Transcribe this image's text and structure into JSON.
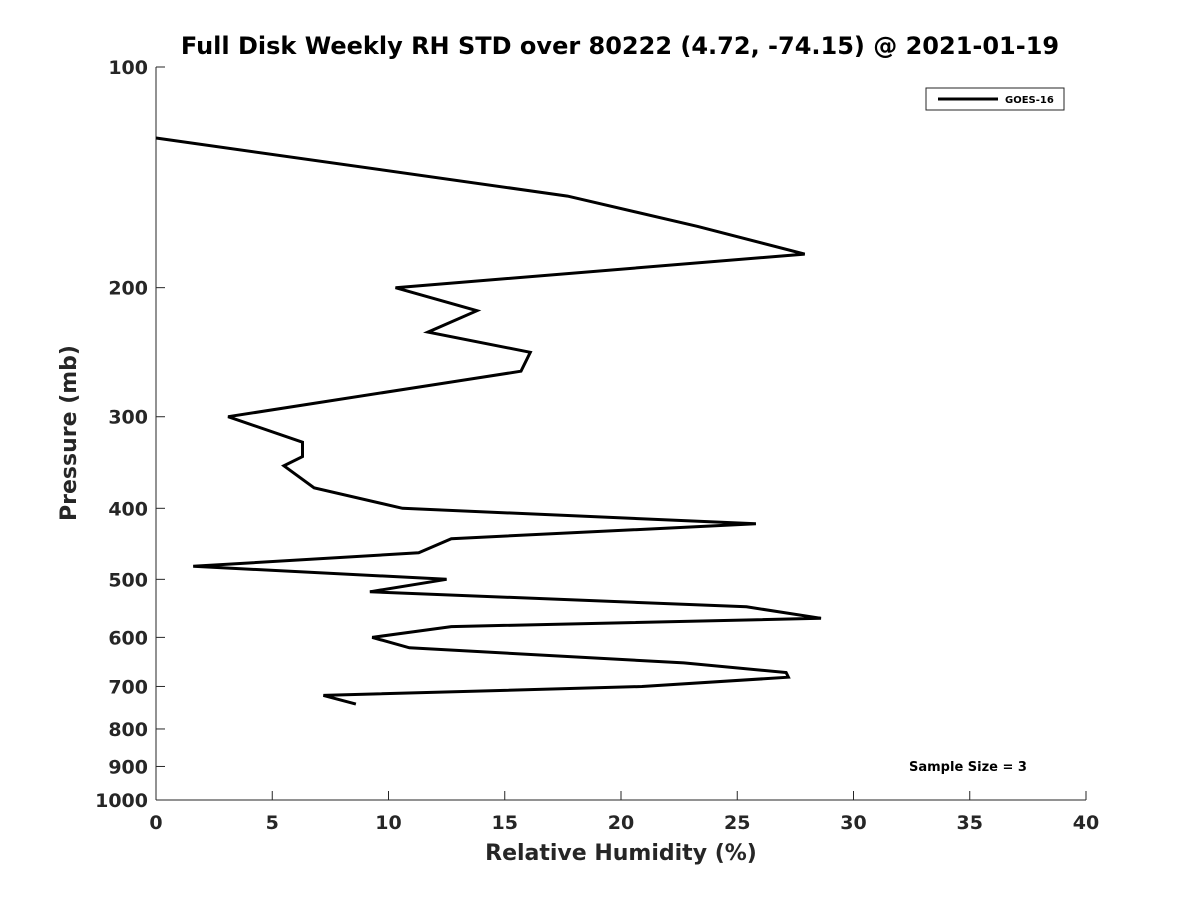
{
  "chart_data": {
    "type": "line",
    "title": "Full Disk Weekly RH STD over 80222 (4.72, -74.15) @ 2021-01-19",
    "xlabel": "Relative Humidity (%)",
    "ylabel": "Pressure (mb)",
    "xlim": [
      0,
      40
    ],
    "ylim": [
      100,
      1000
    ],
    "yscale": "log",
    "y_reversed": true,
    "xticks": [
      0,
      5,
      10,
      15,
      20,
      25,
      30,
      35,
      40
    ],
    "yticks": [
      100,
      200,
      300,
      400,
      500,
      600,
      700,
      800,
      900,
      1000
    ],
    "grid": false,
    "legend_position": "top-right",
    "series": [
      {
        "name": "GOES-16",
        "color": "#000000",
        "points": [
          {
            "x": 0.0,
            "y": 125
          },
          {
            "x": 17.7,
            "y": 150
          },
          {
            "x": 23.3,
            "y": 165
          },
          {
            "x": 27.9,
            "y": 180
          },
          {
            "x": 10.3,
            "y": 200
          },
          {
            "x": 13.8,
            "y": 215
          },
          {
            "x": 11.7,
            "y": 230
          },
          {
            "x": 16.1,
            "y": 245
          },
          {
            "x": 15.7,
            "y": 260
          },
          {
            "x": 3.1,
            "y": 300
          },
          {
            "x": 6.3,
            "y": 325
          },
          {
            "x": 6.3,
            "y": 340
          },
          {
            "x": 5.5,
            "y": 350
          },
          {
            "x": 6.8,
            "y": 375
          },
          {
            "x": 10.6,
            "y": 400
          },
          {
            "x": 25.8,
            "y": 420
          },
          {
            "x": 12.7,
            "y": 440
          },
          {
            "x": 11.3,
            "y": 460
          },
          {
            "x": 1.6,
            "y": 480
          },
          {
            "x": 12.5,
            "y": 500
          },
          {
            "x": 9.2,
            "y": 520
          },
          {
            "x": 25.4,
            "y": 545
          },
          {
            "x": 28.6,
            "y": 565
          },
          {
            "x": 12.7,
            "y": 580
          },
          {
            "x": 9.3,
            "y": 600
          },
          {
            "x": 10.9,
            "y": 620
          },
          {
            "x": 22.7,
            "y": 650
          },
          {
            "x": 27.1,
            "y": 670
          },
          {
            "x": 27.2,
            "y": 680
          },
          {
            "x": 20.9,
            "y": 700
          },
          {
            "x": 7.2,
            "y": 720
          },
          {
            "x": 8.6,
            "y": 740
          }
        ]
      }
    ],
    "annotations": [
      "Sample Size = 3"
    ]
  }
}
